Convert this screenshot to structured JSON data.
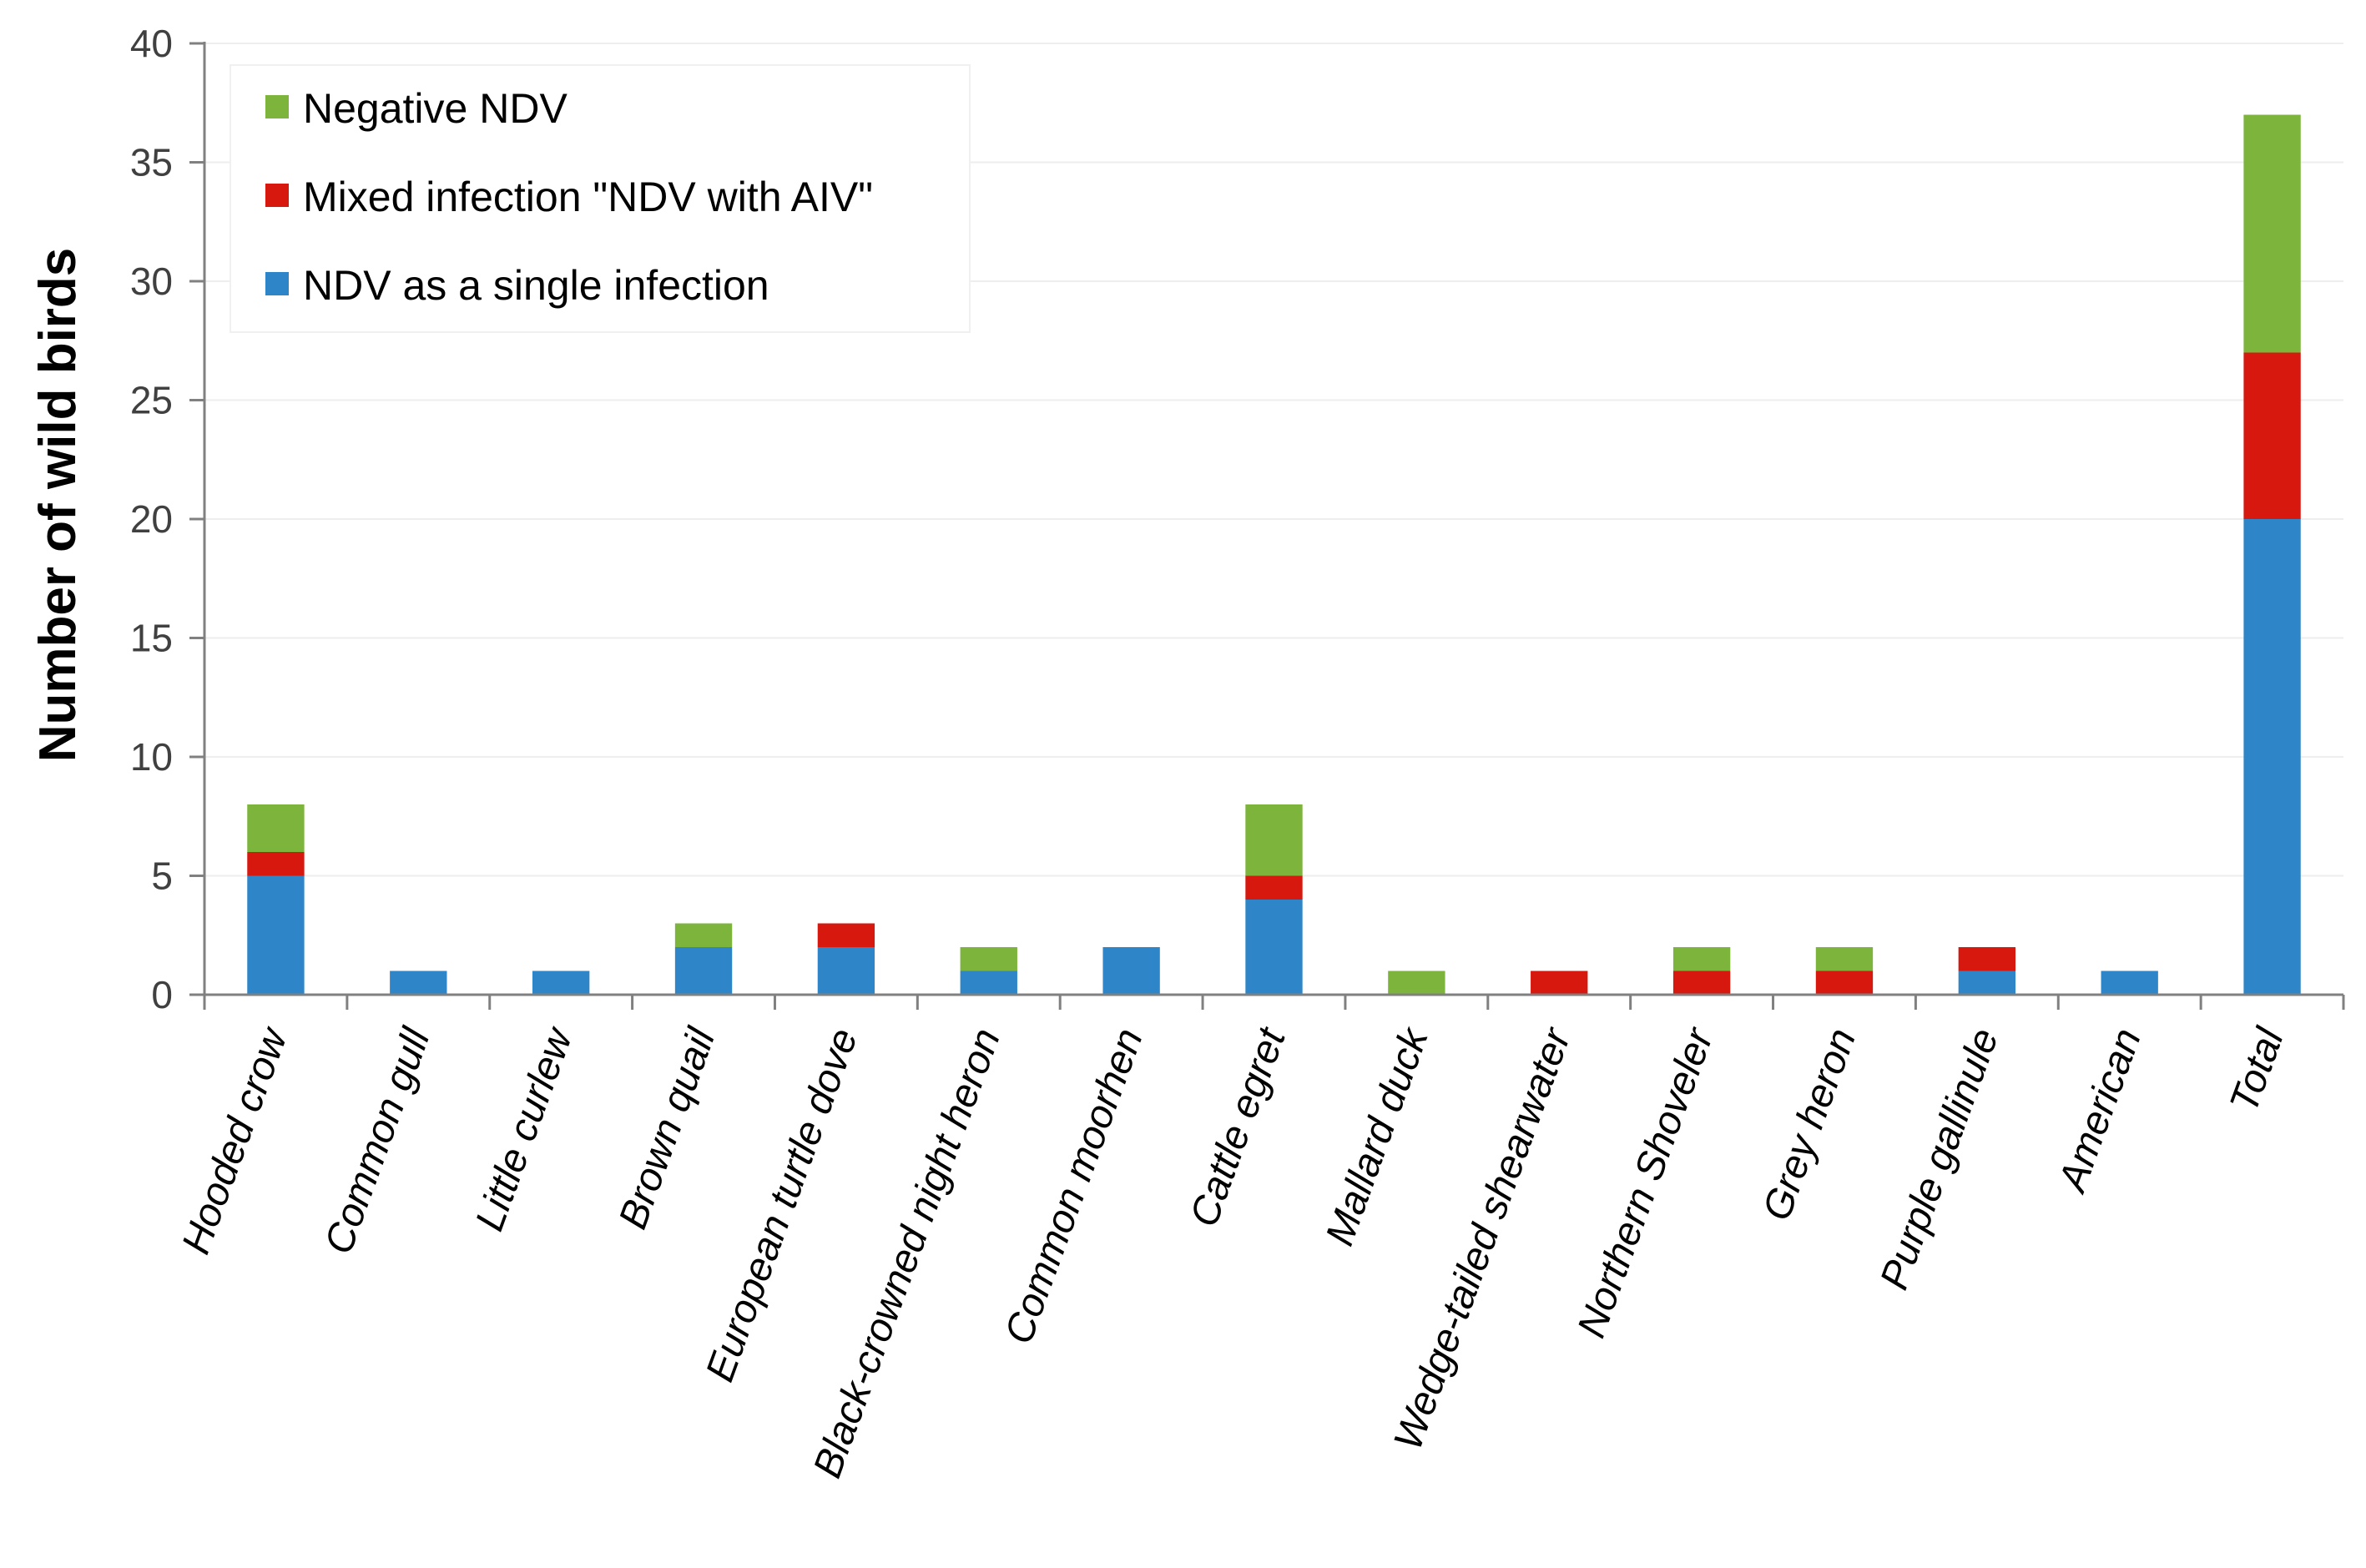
{
  "chart_data": {
    "type": "bar",
    "stacked": true,
    "title": "",
    "xlabel": "",
    "ylabel": "Number of  wild birds",
    "ylim": [
      0,
      40
    ],
    "yticks": [
      0,
      5,
      10,
      15,
      20,
      25,
      30,
      35,
      40
    ],
    "grid": true,
    "legend_position": "top-left",
    "categories": [
      "Hooded crow",
      "Common gull",
      "Little curlew",
      "Brown quail",
      "European turtle dove",
      "Black-crowned night heron",
      "Common moorhen",
      "Cattle egret",
      "Mallard duck",
      "Wedge-tailed shearwater",
      "Northern Shoveler",
      "Grey heron",
      "Purple gallinule",
      "American",
      "Total"
    ],
    "series": [
      {
        "name": "NDV as a single infection",
        "color": "#2E86C8",
        "values": [
          5,
          1,
          1,
          2,
          2,
          1,
          2,
          4,
          0,
          0,
          0,
          0,
          1,
          1,
          20
        ]
      },
      {
        "name": "Mixed infection \"NDV with AIV\"",
        "color": "#D6180F",
        "values": [
          1,
          0,
          0,
          0,
          1,
          0,
          0,
          1,
          0,
          1,
          1,
          1,
          1,
          0,
          7
        ]
      },
      {
        "name": "Negative NDV",
        "color": "#7DB53C",
        "values": [
          2,
          0,
          0,
          1,
          0,
          1,
          0,
          3,
          1,
          0,
          1,
          1,
          0,
          0,
          10
        ]
      }
    ],
    "legend_order": [
      2,
      1,
      0
    ]
  }
}
